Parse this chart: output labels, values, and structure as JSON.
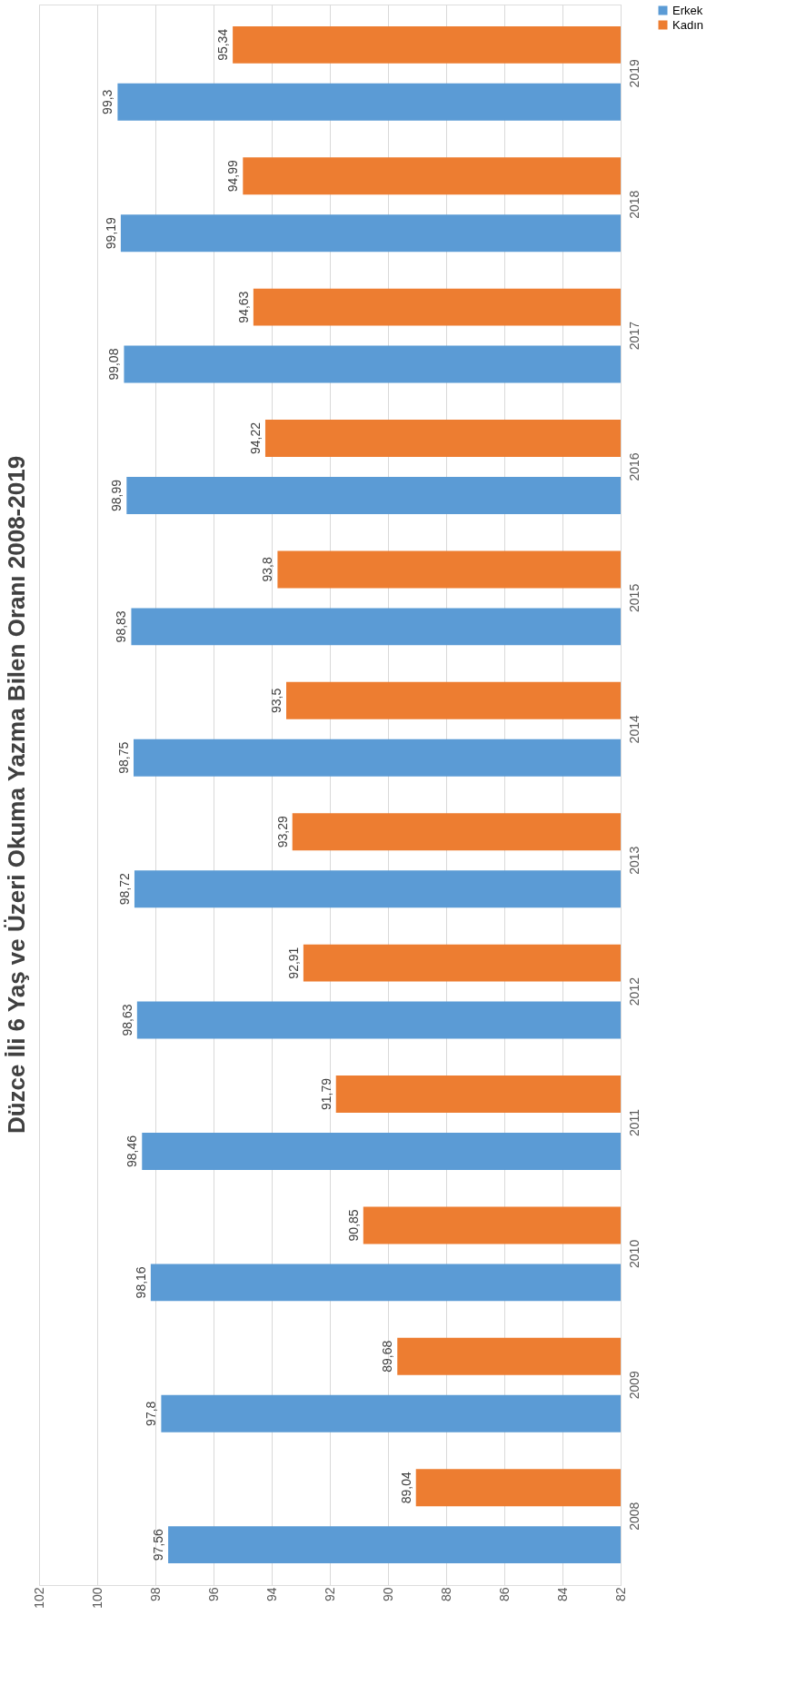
{
  "chart_data": {
    "type": "bar",
    "orientation": "horizontal",
    "title": "Düzce İli 6 Yaş ve Üzeri Okuma Yazma Bilen Oranı 2008-2019",
    "categories": [
      "2019",
      "2018",
      "2017",
      "2016",
      "2015",
      "2014",
      "2013",
      "2012",
      "2011",
      "2010",
      "2009",
      "2008"
    ],
    "series": [
      {
        "name": "Erkek",
        "color": "#5b9bd5",
        "values": [
          99.3,
          99.19,
          99.08,
          98.99,
          98.83,
          98.75,
          98.72,
          98.63,
          98.46,
          98.16,
          97.8,
          97.56
        ],
        "value_labels": [
          "99,3",
          "99,19",
          "99,08",
          "98,99",
          "98,83",
          "98,75",
          "98,72",
          "98,63",
          "98,46",
          "98,16",
          "97,8",
          "97,56"
        ]
      },
      {
        "name": "Kadın",
        "color": "#ed7d31",
        "values": [
          95.34,
          94.99,
          94.63,
          94.22,
          93.8,
          93.5,
          93.29,
          92.91,
          91.79,
          90.85,
          89.68,
          89.04
        ],
        "value_labels": [
          "95,34",
          "94,99",
          "94,63",
          "94,22",
          "93,8",
          "93,5",
          "93,29",
          "92,91",
          "91,79",
          "90,85",
          "89,68",
          "89,04"
        ]
      }
    ],
    "xlim": [
      102,
      82
    ],
    "xticks": [
      102,
      100,
      98,
      96,
      94,
      92,
      90,
      88,
      86,
      84,
      82
    ],
    "grid": "x",
    "legend": "right"
  }
}
